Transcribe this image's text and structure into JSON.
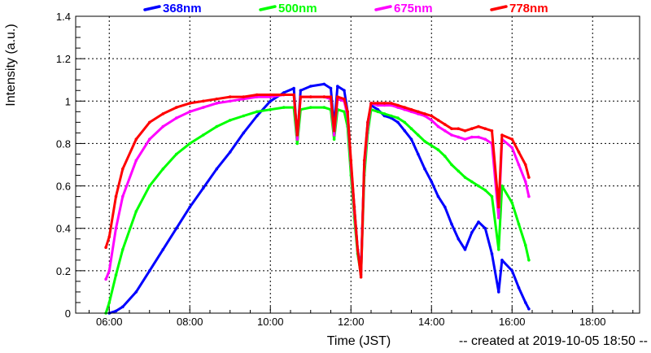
{
  "chart_data": {
    "type": "scatter",
    "title": "",
    "xlabel": "Time (JST)",
    "ylabel": "Intensity (a.u.)",
    "footer": "-- created at 2019-10-05 18:50 --",
    "xlim": [
      "05:10",
      "19:10"
    ],
    "ylim": [
      0,
      1.4
    ],
    "x_ticks": [
      "06:00",
      "08:00",
      "10:00",
      "12:00",
      "14:00",
      "16:00",
      "18:00"
    ],
    "y_ticks": [
      "0",
      "0.2",
      "0.4",
      "0.6",
      "0.8",
      "1",
      "1.2",
      "1.4"
    ],
    "grid": true,
    "legend_position": "top",
    "series": [
      {
        "name": "368nm",
        "color": "#0000ff",
        "points": [
          [
            "06:00",
            0.0
          ],
          [
            "06:10",
            0.01
          ],
          [
            "06:20",
            0.03
          ],
          [
            "06:40",
            0.1
          ],
          [
            "07:00",
            0.2
          ],
          [
            "07:20",
            0.3
          ],
          [
            "07:40",
            0.4
          ],
          [
            "08:00",
            0.5
          ],
          [
            "08:20",
            0.59
          ],
          [
            "08:40",
            0.68
          ],
          [
            "09:00",
            0.76
          ],
          [
            "09:20",
            0.85
          ],
          [
            "09:40",
            0.93
          ],
          [
            "10:00",
            1.0
          ],
          [
            "10:20",
            1.04
          ],
          [
            "10:35",
            1.06
          ],
          [
            "10:40",
            0.82
          ],
          [
            "10:45",
            1.05
          ],
          [
            "11:00",
            1.07
          ],
          [
            "11:20",
            1.08
          ],
          [
            "11:30",
            1.06
          ],
          [
            "11:35",
            0.88
          ],
          [
            "11:40",
            1.07
          ],
          [
            "11:50",
            1.05
          ],
          [
            "11:55",
            0.95
          ],
          [
            "12:00",
            0.7
          ],
          [
            "12:05",
            0.5
          ],
          [
            "12:10",
            0.3
          ],
          [
            "12:15",
            0.2
          ],
          [
            "12:20",
            0.7
          ],
          [
            "12:25",
            0.9
          ],
          [
            "12:30",
            0.98
          ],
          [
            "12:40",
            0.96
          ],
          [
            "12:50",
            0.93
          ],
          [
            "13:00",
            0.92
          ],
          [
            "13:10",
            0.9
          ],
          [
            "13:20",
            0.86
          ],
          [
            "13:30",
            0.82
          ],
          [
            "13:40",
            0.75
          ],
          [
            "13:50",
            0.68
          ],
          [
            "14:00",
            0.62
          ],
          [
            "14:10",
            0.55
          ],
          [
            "14:20",
            0.5
          ],
          [
            "14:30",
            0.42
          ],
          [
            "14:40",
            0.35
          ],
          [
            "14:50",
            0.3
          ],
          [
            "15:00",
            0.38
          ],
          [
            "15:10",
            0.43
          ],
          [
            "15:20",
            0.4
          ],
          [
            "15:30",
            0.28
          ],
          [
            "15:40",
            0.1
          ],
          [
            "15:45",
            0.25
          ],
          [
            "16:00",
            0.2
          ],
          [
            "16:10",
            0.12
          ],
          [
            "16:20",
            0.05
          ],
          [
            "16:25",
            0.02
          ]
        ]
      },
      {
        "name": "500nm",
        "color": "#00ff00",
        "points": [
          [
            "05:55",
            0.0
          ],
          [
            "06:00",
            0.05
          ],
          [
            "06:10",
            0.18
          ],
          [
            "06:20",
            0.3
          ],
          [
            "06:40",
            0.48
          ],
          [
            "07:00",
            0.6
          ],
          [
            "07:20",
            0.68
          ],
          [
            "07:40",
            0.75
          ],
          [
            "08:00",
            0.8
          ],
          [
            "08:20",
            0.84
          ],
          [
            "08:40",
            0.88
          ],
          [
            "09:00",
            0.91
          ],
          [
            "09:20",
            0.93
          ],
          [
            "09:40",
            0.95
          ],
          [
            "10:00",
            0.96
          ],
          [
            "10:20",
            0.97
          ],
          [
            "10:35",
            0.97
          ],
          [
            "10:40",
            0.8
          ],
          [
            "10:45",
            0.96
          ],
          [
            "11:00",
            0.97
          ],
          [
            "11:20",
            0.97
          ],
          [
            "11:30",
            0.96
          ],
          [
            "11:35",
            0.82
          ],
          [
            "11:40",
            0.96
          ],
          [
            "11:50",
            0.95
          ],
          [
            "11:55",
            0.88
          ],
          [
            "12:00",
            0.65
          ],
          [
            "12:05",
            0.45
          ],
          [
            "12:10",
            0.28
          ],
          [
            "12:15",
            0.18
          ],
          [
            "12:20",
            0.65
          ],
          [
            "12:25",
            0.85
          ],
          [
            "12:30",
            0.96
          ],
          [
            "12:40",
            0.95
          ],
          [
            "12:50",
            0.94
          ],
          [
            "13:00",
            0.93
          ],
          [
            "13:10",
            0.92
          ],
          [
            "13:20",
            0.9
          ],
          [
            "13:30",
            0.87
          ],
          [
            "13:40",
            0.84
          ],
          [
            "13:50",
            0.81
          ],
          [
            "14:00",
            0.79
          ],
          [
            "14:10",
            0.77
          ],
          [
            "14:20",
            0.74
          ],
          [
            "14:30",
            0.7
          ],
          [
            "14:40",
            0.67
          ],
          [
            "14:50",
            0.64
          ],
          [
            "15:00",
            0.62
          ],
          [
            "15:10",
            0.6
          ],
          [
            "15:20",
            0.58
          ],
          [
            "15:30",
            0.55
          ],
          [
            "15:40",
            0.3
          ],
          [
            "15:45",
            0.6
          ],
          [
            "16:00",
            0.52
          ],
          [
            "16:10",
            0.42
          ],
          [
            "16:20",
            0.32
          ],
          [
            "16:25",
            0.25
          ]
        ]
      },
      {
        "name": "675nm",
        "color": "#ff00ff",
        "points": [
          [
            "05:55",
            0.16
          ],
          [
            "06:00",
            0.2
          ],
          [
            "06:10",
            0.4
          ],
          [
            "06:20",
            0.55
          ],
          [
            "06:40",
            0.72
          ],
          [
            "07:00",
            0.82
          ],
          [
            "07:20",
            0.88
          ],
          [
            "07:40",
            0.92
          ],
          [
            "08:00",
            0.95
          ],
          [
            "08:20",
            0.97
          ],
          [
            "08:40",
            0.99
          ],
          [
            "09:00",
            1.0
          ],
          [
            "09:20",
            1.01
          ],
          [
            "09:40",
            1.02
          ],
          [
            "10:00",
            1.02
          ],
          [
            "10:20",
            1.03
          ],
          [
            "10:35",
            1.03
          ],
          [
            "10:40",
            0.82
          ],
          [
            "10:45",
            1.02
          ],
          [
            "11:00",
            1.02
          ],
          [
            "11:20",
            1.02
          ],
          [
            "11:30",
            1.01
          ],
          [
            "11:35",
            0.84
          ],
          [
            "11:40",
            1.01
          ],
          [
            "11:50",
            1.0
          ],
          [
            "11:55",
            0.93
          ],
          [
            "12:00",
            0.7
          ],
          [
            "12:05",
            0.48
          ],
          [
            "12:10",
            0.3
          ],
          [
            "12:15",
            0.18
          ],
          [
            "12:20",
            0.7
          ],
          [
            "12:25",
            0.88
          ],
          [
            "12:30",
            0.99
          ],
          [
            "12:40",
            0.98
          ],
          [
            "12:50",
            0.98
          ],
          [
            "13:00",
            0.98
          ],
          [
            "13:10",
            0.97
          ],
          [
            "13:20",
            0.96
          ],
          [
            "13:30",
            0.95
          ],
          [
            "13:40",
            0.94
          ],
          [
            "13:50",
            0.93
          ],
          [
            "14:00",
            0.91
          ],
          [
            "14:10",
            0.88
          ],
          [
            "14:20",
            0.86
          ],
          [
            "14:30",
            0.84
          ],
          [
            "14:40",
            0.83
          ],
          [
            "14:50",
            0.82
          ],
          [
            "15:00",
            0.83
          ],
          [
            "15:10",
            0.83
          ],
          [
            "15:20",
            0.82
          ],
          [
            "15:30",
            0.8
          ],
          [
            "15:40",
            0.45
          ],
          [
            "15:45",
            0.82
          ],
          [
            "16:00",
            0.78
          ],
          [
            "16:10",
            0.7
          ],
          [
            "16:20",
            0.62
          ],
          [
            "16:25",
            0.55
          ]
        ]
      },
      {
        "name": "778nm",
        "color": "#ff0000",
        "points": [
          [
            "05:55",
            0.31
          ],
          [
            "06:00",
            0.36
          ],
          [
            "06:10",
            0.55
          ],
          [
            "06:20",
            0.68
          ],
          [
            "06:40",
            0.82
          ],
          [
            "07:00",
            0.9
          ],
          [
            "07:20",
            0.94
          ],
          [
            "07:40",
            0.97
          ],
          [
            "08:00",
            0.99
          ],
          [
            "08:20",
            1.0
          ],
          [
            "08:40",
            1.01
          ],
          [
            "09:00",
            1.02
          ],
          [
            "09:20",
            1.02
          ],
          [
            "09:40",
            1.03
          ],
          [
            "10:00",
            1.03
          ],
          [
            "10:20",
            1.03
          ],
          [
            "10:35",
            1.03
          ],
          [
            "10:40",
            0.84
          ],
          [
            "10:45",
            1.02
          ],
          [
            "11:00",
            1.02
          ],
          [
            "11:20",
            1.02
          ],
          [
            "11:30",
            1.02
          ],
          [
            "11:35",
            0.86
          ],
          [
            "11:40",
            1.02
          ],
          [
            "11:50",
            1.01
          ],
          [
            "11:55",
            0.95
          ],
          [
            "12:00",
            0.72
          ],
          [
            "12:05",
            0.5
          ],
          [
            "12:10",
            0.3
          ],
          [
            "12:15",
            0.17
          ],
          [
            "12:20",
            0.72
          ],
          [
            "12:25",
            0.9
          ],
          [
            "12:30",
            0.99
          ],
          [
            "12:40",
            0.99
          ],
          [
            "12:50",
            0.99
          ],
          [
            "13:00",
            0.99
          ],
          [
            "13:10",
            0.98
          ],
          [
            "13:20",
            0.97
          ],
          [
            "13:30",
            0.96
          ],
          [
            "13:40",
            0.95
          ],
          [
            "13:50",
            0.94
          ],
          [
            "14:00",
            0.93
          ],
          [
            "14:10",
            0.91
          ],
          [
            "14:20",
            0.89
          ],
          [
            "14:30",
            0.87
          ],
          [
            "14:40",
            0.87
          ],
          [
            "14:50",
            0.86
          ],
          [
            "15:00",
            0.87
          ],
          [
            "15:10",
            0.88
          ],
          [
            "15:20",
            0.87
          ],
          [
            "15:30",
            0.86
          ],
          [
            "15:40",
            0.5
          ],
          [
            "15:45",
            0.84
          ],
          [
            "16:00",
            0.82
          ],
          [
            "16:10",
            0.76
          ],
          [
            "16:20",
            0.7
          ],
          [
            "16:25",
            0.64
          ]
        ]
      }
    ]
  }
}
